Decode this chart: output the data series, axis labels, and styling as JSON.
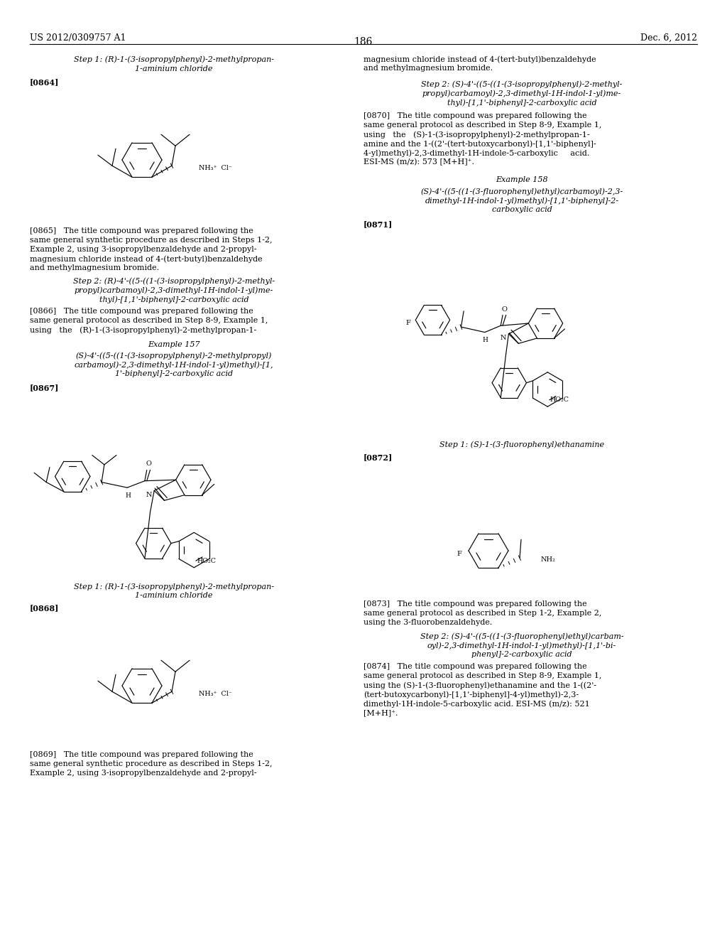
{
  "page_number": "186",
  "patent_number": "US 2012/0309757 A1",
  "patent_date": "Dec. 6, 2012",
  "background_color": "#ffffff",
  "font_size_body": 8.0,
  "font_size_header": 9.0,
  "font_size_label": 8.0
}
